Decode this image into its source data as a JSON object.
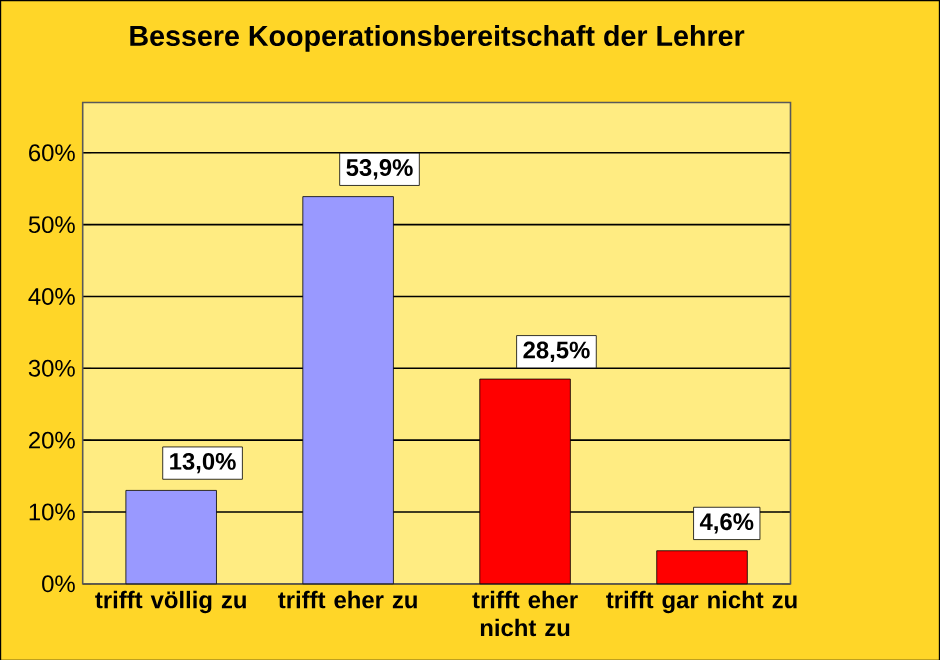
{
  "chart_data": {
    "type": "bar",
    "title": "Bessere Kooperationsbereitschaft der Lehrer",
    "categories": [
      "trifft völlig zu",
      "trifft eher zu",
      "trifft eher nicht zu",
      "trifft gar nicht zu"
    ],
    "values": [
      13.0,
      53.9,
      28.5,
      4.6
    ],
    "colors": [
      "#9999ff",
      "#9999ff",
      "#ff0000",
      "#ff0000"
    ],
    "value_labels": [
      "13,0%",
      "53,9%",
      "28,5%",
      "4,6%"
    ],
    "ylim": [
      0,
      67
    ],
    "yticks": [
      {
        "value": 0,
        "label": "0%"
      },
      {
        "value": 10,
        "label": "10%"
      },
      {
        "value": 20,
        "label": "20%"
      },
      {
        "value": 30,
        "label": "30%"
      },
      {
        "value": 40,
        "label": "40%"
      },
      {
        "value": 50,
        "label": "50%"
      },
      {
        "value": 60,
        "label": "60%"
      }
    ],
    "grid": "y"
  }
}
